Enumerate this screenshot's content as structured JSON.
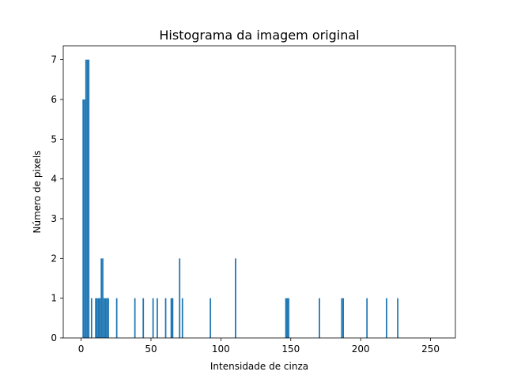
{
  "chart_data": {
    "type": "bar",
    "title": "Histograma da imagem original",
    "xlabel": "Intensidade de cinza",
    "ylabel": "Número de pixels",
    "xlim": [
      -12.75,
      267.75
    ],
    "ylim": [
      0,
      7.35
    ],
    "xticks": [
      0,
      50,
      100,
      150,
      200,
      250
    ],
    "yticks": [
      0,
      1,
      2,
      3,
      4,
      5,
      6,
      7
    ],
    "bin_width": 1,
    "color": "#1f77b4",
    "grid": false,
    "legend": "none",
    "x": [
      1,
      2,
      3,
      4,
      5,
      7,
      10,
      11,
      12,
      13,
      14,
      15,
      16,
      17,
      18,
      19,
      25,
      38,
      44,
      51,
      54,
      60,
      64,
      65,
      70,
      72,
      92,
      110,
      146,
      147,
      148,
      170,
      186,
      187,
      204,
      218,
      226
    ],
    "values": [
      6,
      6,
      7,
      7,
      7,
      1,
      1,
      1,
      1,
      1,
      2,
      2,
      1,
      1,
      1,
      1,
      1,
      1,
      1,
      1,
      1,
      1,
      1,
      1,
      2,
      1,
      1,
      2,
      1,
      1,
      1,
      1,
      1,
      1,
      1,
      1,
      1
    ]
  }
}
